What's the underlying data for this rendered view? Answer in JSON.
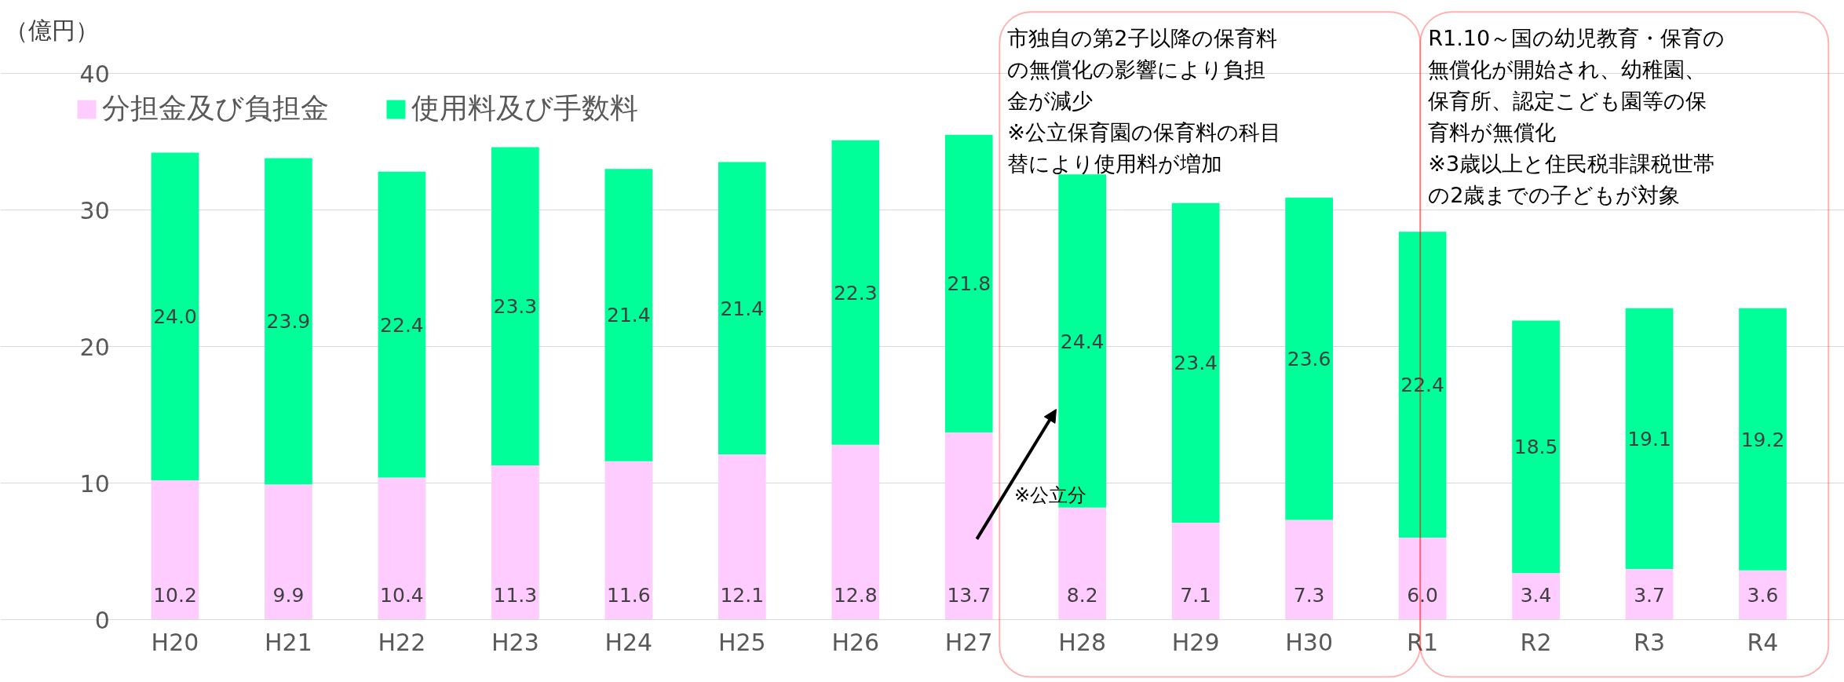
{
  "chart_data": {
    "type": "bar",
    "stacked": true,
    "ylabel": "（億円）",
    "categories": [
      "H20",
      "H21",
      "H22",
      "H23",
      "H24",
      "H25",
      "H26",
      "H27",
      "H28",
      "H29",
      "H30",
      "R1",
      "R2",
      "R3",
      "R4"
    ],
    "series": [
      {
        "name": "分担金及び負担金",
        "color": "#ffccff",
        "values": [
          10.2,
          9.9,
          10.4,
          11.3,
          11.6,
          12.1,
          12.8,
          13.7,
          8.2,
          7.1,
          7.3,
          6.0,
          3.4,
          3.7,
          3.6
        ],
        "value_labels": [
          "10.2",
          "9.9",
          "10.4",
          "11.3",
          "11.6",
          "12.1",
          "12.8",
          "13.7",
          "8.2",
          "7.1",
          "7.3",
          "6.0",
          "3.4",
          "3.7",
          "3.6"
        ]
      },
      {
        "name": "使用料及び手数料",
        "color": "#00ff99",
        "values": [
          24.0,
          23.9,
          22.4,
          23.3,
          21.4,
          21.4,
          22.3,
          21.8,
          24.4,
          23.4,
          23.6,
          22.4,
          18.5,
          19.1,
          19.2
        ],
        "value_labels": [
          "24.0",
          "23.9",
          "22.4",
          "23.3",
          "21.4",
          "21.4",
          "22.3",
          "21.8",
          "24.4",
          "23.4",
          "23.6",
          "22.4",
          "18.5",
          "19.1",
          "19.2"
        ]
      }
    ],
    "ylim": [
      0,
      40
    ],
    "yticks": [
      0,
      10,
      20,
      30,
      40
    ],
    "grid": "y",
    "legend": "top",
    "annotations": [
      "市独自の第2子以降の保育料の無償化の影響により負担金が減少",
      "※公立保育園の保育料の科目替により使用料が増加",
      "R1.10～国の幼児教育・保育の無償化が開始され、幼稚園、保育所、認定こども園等の保育料が無償化",
      "※3歳以上と住民税非課税世帯の2歳までの子どもが対象",
      "※公立分"
    ]
  }
}
